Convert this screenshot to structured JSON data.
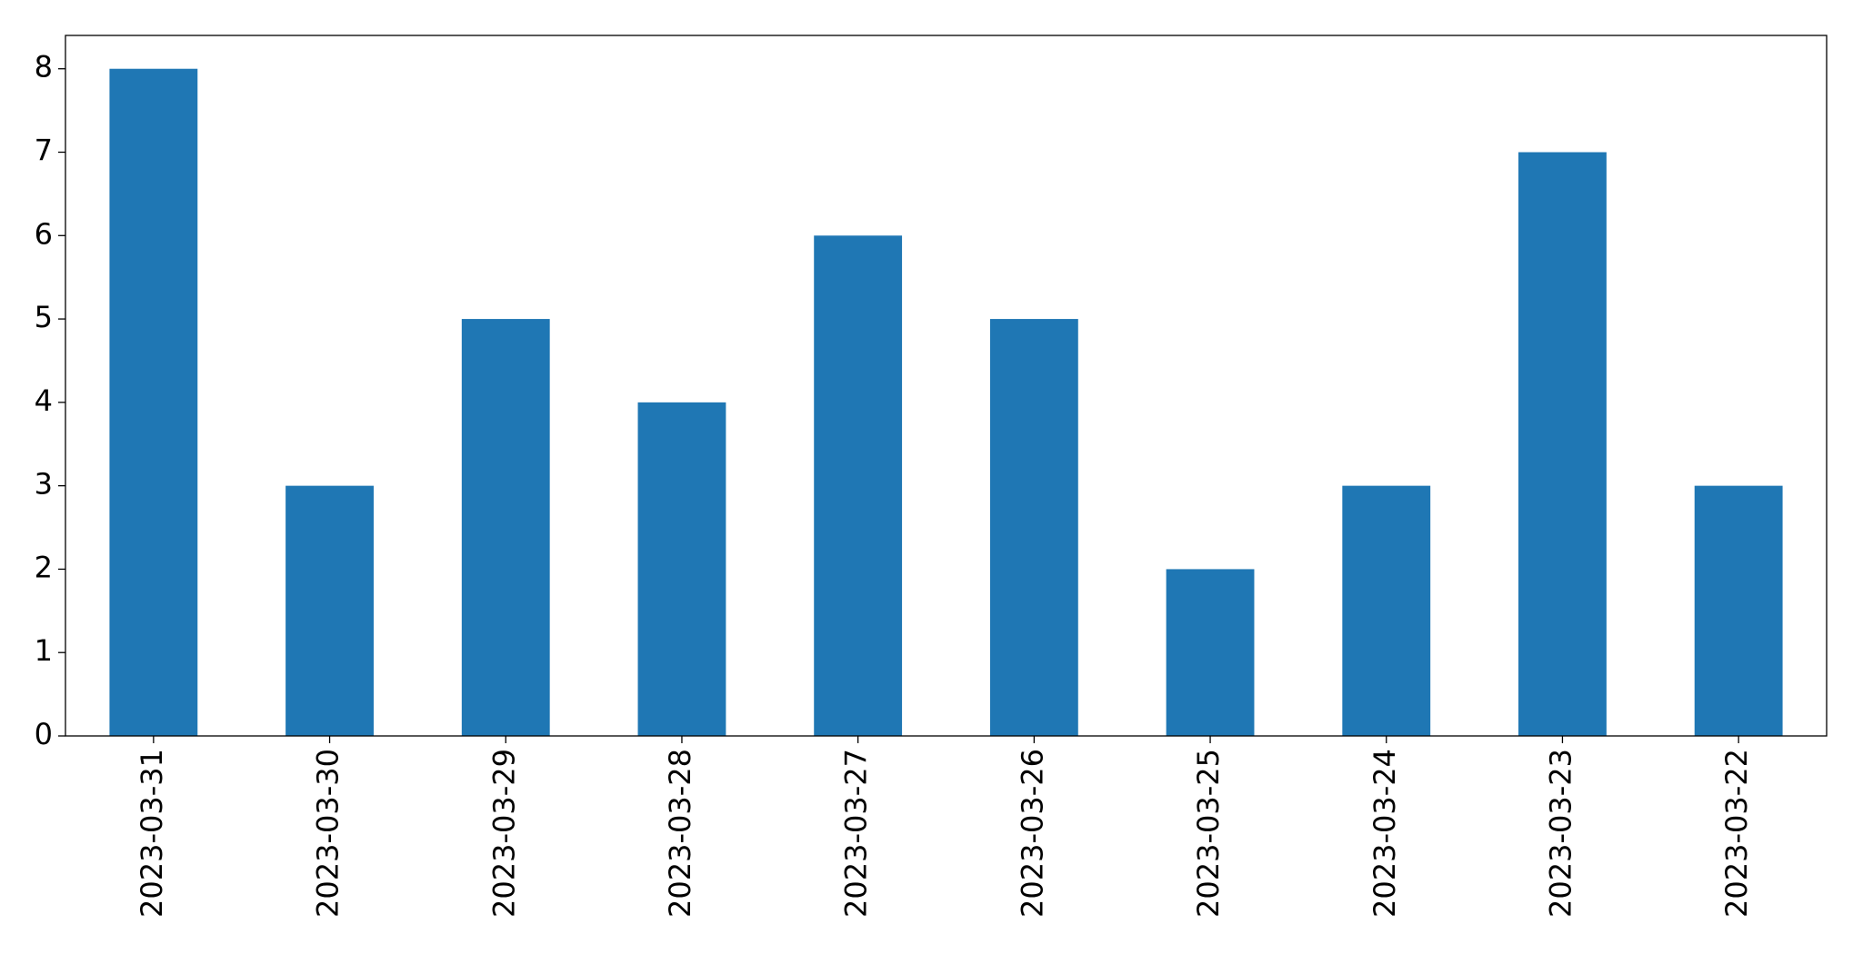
{
  "chart_data": {
    "type": "bar",
    "categories": [
      "2023-03-31",
      "2023-03-30",
      "2023-03-29",
      "2023-03-28",
      "2023-03-27",
      "2023-03-26",
      "2023-03-25",
      "2023-03-24",
      "2023-03-23",
      "2023-03-22"
    ],
    "values": [
      8,
      3,
      5,
      4,
      6,
      5,
      2,
      3,
      7,
      3
    ],
    "color": "#1f77b4",
    "ylim": [
      0,
      8.4
    ],
    "yticks": [
      0,
      1,
      2,
      3,
      4,
      5,
      6,
      7,
      8
    ],
    "grid": false
  }
}
